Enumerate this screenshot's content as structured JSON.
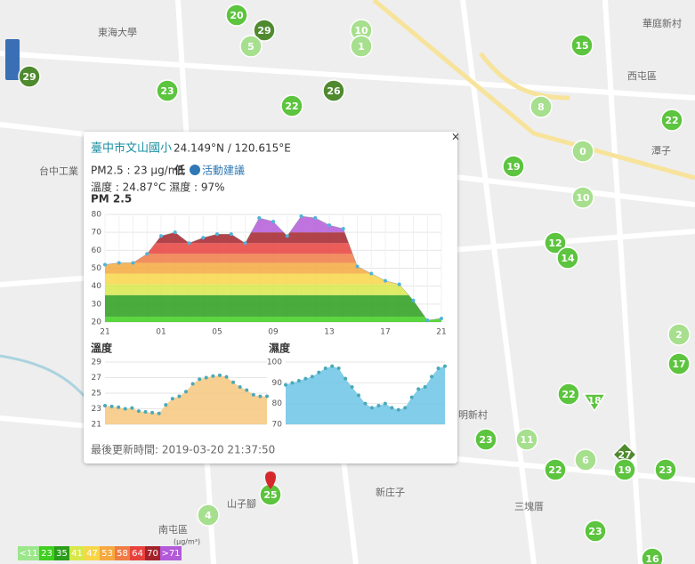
{
  "map": {
    "places": [
      "東海大學",
      "台中工業",
      "華庭新村",
      "西屯區",
      "潭子",
      "明新村",
      "山子腳",
      "南屯區",
      "三塊厝",
      "新庄子"
    ],
    "markers": [
      {
        "label": "20",
        "color": "#5cc43e",
        "shape": "circle"
      },
      {
        "label": "29",
        "color": "#4f8a2f",
        "shape": "circle"
      },
      {
        "label": "5",
        "color": "#a6df8d",
        "shape": "circle"
      },
      {
        "label": "10",
        "color": "#a6df8d",
        "shape": "circle"
      },
      {
        "label": "1",
        "color": "#a6df8d",
        "shape": "circle"
      },
      {
        "label": "29",
        "color": "#4f8a2f",
        "shape": "circle"
      },
      {
        "label": "23",
        "color": "#5cc43e",
        "shape": "circle"
      },
      {
        "label": "26",
        "color": "#4f8a2f",
        "shape": "circle"
      },
      {
        "label": "22",
        "color": "#5cc43e",
        "shape": "circle"
      },
      {
        "label": "15",
        "color": "#5cc43e",
        "shape": "circle"
      },
      {
        "label": "8",
        "color": "#a6df8d",
        "shape": "circle"
      },
      {
        "label": "22",
        "color": "#5cc43e",
        "shape": "circle"
      },
      {
        "label": "0",
        "color": "#a6df8d",
        "shape": "circle"
      },
      {
        "label": "19",
        "color": "#5cc43e",
        "shape": "circle"
      },
      {
        "label": "10",
        "color": "#a6df8d",
        "shape": "circle"
      },
      {
        "label": "12",
        "color": "#5cc43e",
        "shape": "circle"
      },
      {
        "label": "14",
        "color": "#5cc43e",
        "shape": "circle"
      },
      {
        "label": "2",
        "color": "#a6df8d",
        "shape": "circle"
      },
      {
        "label": "17",
        "color": "#5cc43e",
        "shape": "circle"
      },
      {
        "label": "22",
        "color": "#5cc43e",
        "shape": "circle"
      },
      {
        "label": "18",
        "color": "#5cc43e",
        "shape": "triangle"
      },
      {
        "label": "23",
        "color": "#5cc43e",
        "shape": "circle"
      },
      {
        "label": "11",
        "color": "#a6df8d",
        "shape": "circle"
      },
      {
        "label": "27",
        "color": "#4f8a2f",
        "shape": "diamond"
      },
      {
        "label": "6",
        "color": "#a6df8d",
        "shape": "circle"
      },
      {
        "label": "22",
        "color": "#5cc43e",
        "shape": "circle"
      },
      {
        "label": "19",
        "color": "#5cc43e",
        "shape": "circle"
      },
      {
        "label": "23",
        "color": "#5cc43e",
        "shape": "circle"
      },
      {
        "label": "4",
        "color": "#a6df8d",
        "shape": "circle"
      },
      {
        "label": "23",
        "color": "#5cc43e",
        "shape": "circle"
      },
      {
        "label": "16",
        "color": "#5cc43e",
        "shape": "circle"
      },
      {
        "label": "25",
        "color": "#5cc43e",
        "shape": "circle"
      }
    ],
    "legend": {
      "unit": "(μg/m³)",
      "items": [
        {
          "value": 11,
          "label": "<11",
          "color": "#9ce68c"
        },
        {
          "value": 23,
          "label": "23",
          "color": "#3fcf1f"
        },
        {
          "value": 35,
          "label": "35",
          "color": "#2a9d1a"
        },
        {
          "value": 41,
          "label": "41",
          "color": "#d8e84a"
        },
        {
          "value": 47,
          "label": "47",
          "color": "#f7d648"
        },
        {
          "value": 53,
          "label": "53",
          "color": "#f5a93e"
        },
        {
          "value": 58,
          "label": "58",
          "color": "#f07b45"
        },
        {
          "value": 64,
          "label": "64",
          "color": "#e8413c"
        },
        {
          "value": 70,
          "label": "70",
          "color": "#a3222a"
        },
        {
          "value": 71,
          "label": ">71",
          "color": "#b35ad9"
        }
      ]
    }
  },
  "popup": {
    "station": "臺中市文山國小",
    "coords": "24.149°N / 120.615°E",
    "pm25_text": "PM2.5 : 23 μg/m³",
    "level": "低",
    "advice": "活動建議",
    "weather": "溫度 : 24.87°C 濕度 : 97%",
    "updated": "最後更新時間: 2019-03-20 21:37:50",
    "close": "×",
    "charts": [
      {
        "type": "area",
        "title": "PM 2.5",
        "categories": [
          "21",
          null,
          null,
          null,
          "01",
          null,
          null,
          null,
          "05",
          null,
          null,
          null,
          "09",
          null,
          null,
          null,
          "13",
          null,
          null,
          null,
          "17",
          null,
          null,
          null,
          "21"
        ],
        "values": [
          52,
          53,
          53,
          58,
          68,
          70,
          64,
          67,
          69,
          69,
          64,
          78,
          76,
          68,
          79,
          78,
          74,
          72,
          51,
          47,
          43,
          41,
          32,
          21,
          22
        ],
        "ylim": [
          20,
          80
        ],
        "yticks": [
          20,
          30,
          40,
          50,
          60,
          70,
          80
        ],
        "color": "#4fb3d9"
      },
      {
        "type": "area",
        "title": "溫度",
        "values": [
          23.4,
          23.3,
          23.2,
          23.0,
          23.1,
          22.7,
          22.6,
          22.5,
          22.4,
          23.5,
          24.3,
          24.6,
          25.2,
          26.2,
          26.8,
          27.0,
          27.2,
          27.3,
          27.1,
          26.4,
          25.8,
          25.4,
          24.8,
          24.6,
          24.6
        ],
        "ylim": [
          21,
          29
        ],
        "yticks": [
          21,
          23,
          25,
          27,
          29
        ],
        "color": "#f5c77e"
      },
      {
        "type": "area",
        "title": "濕度",
        "values": [
          89,
          90,
          91,
          92,
          93,
          95,
          97,
          98,
          97,
          92,
          88,
          84,
          80,
          78,
          79,
          80,
          78,
          77,
          78,
          83,
          87,
          88,
          93,
          97,
          98
        ],
        "ylim": [
          70,
          100
        ],
        "yticks": [
          70,
          80,
          90,
          100
        ],
        "color": "#6cc4e6"
      }
    ]
  }
}
